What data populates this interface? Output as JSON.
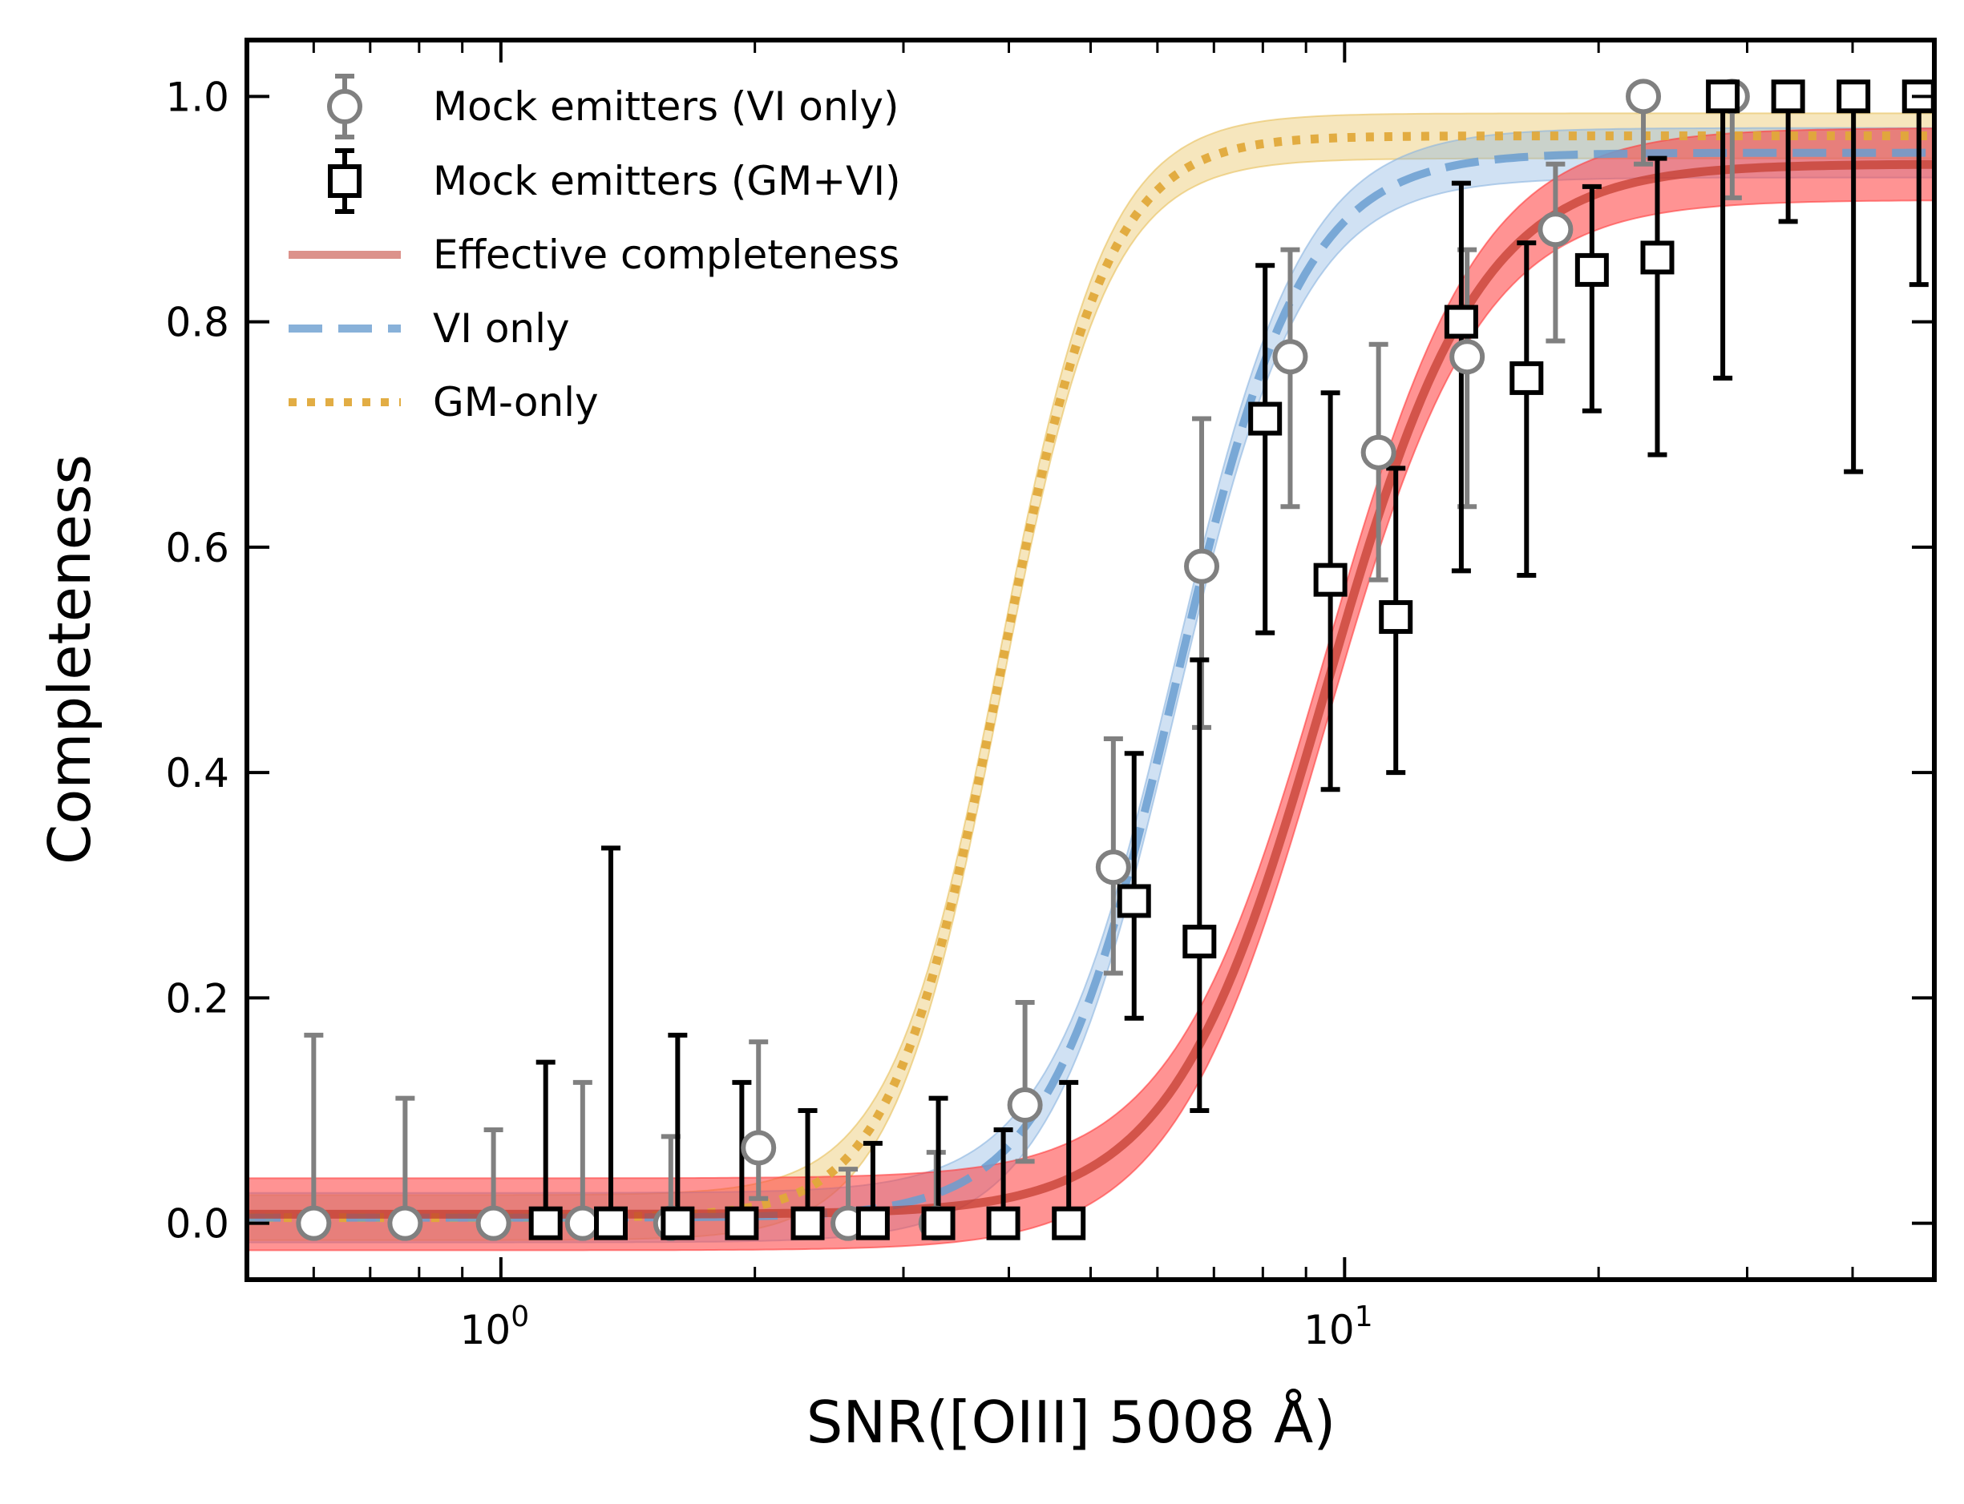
{
  "chart_data": {
    "type": "scatter",
    "xlabel": "SNR([OIII] 5008 Å)",
    "ylabel": "Completeness",
    "xscale": "log",
    "xlim": [
      0.5,
      50
    ],
    "ylim": [
      -0.05,
      1.05
    ],
    "x_ticks": [
      {
        "value": 1,
        "base": "10",
        "exp": "0"
      },
      {
        "value": 10,
        "base": "10",
        "exp": "1"
      }
    ],
    "y_ticks": [
      {
        "value": 0.0,
        "label": "0.0"
      },
      {
        "value": 0.2,
        "label": "0.2"
      },
      {
        "value": 0.4,
        "label": "0.4"
      },
      {
        "value": 0.6,
        "label": "0.6"
      },
      {
        "value": 0.8,
        "label": "0.8"
      },
      {
        "value": 1.0,
        "label": "1.0"
      }
    ],
    "grid": false,
    "legend_position": "top-left",
    "series": [
      {
        "name": "Mock emitters (VI only)",
        "kind": "errorbar",
        "marker": "circle",
        "color": "#808080",
        "points": [
          {
            "x": 0.6,
            "y": 0.0,
            "lo": 0.0,
            "hi": 0.167
          },
          {
            "x": 0.77,
            "y": 0.0,
            "lo": 0.0,
            "hi": 0.111
          },
          {
            "x": 0.98,
            "y": 0.0,
            "lo": 0.0,
            "hi": 0.083
          },
          {
            "x": 1.25,
            "y": 0.0,
            "lo": 0.0,
            "hi": 0.125
          },
          {
            "x": 1.59,
            "y": 0.0,
            "lo": 0.0,
            "hi": 0.077
          },
          {
            "x": 2.02,
            "y": 0.067,
            "lo": 0.022,
            "hi": 0.161
          },
          {
            "x": 2.58,
            "y": 0.0,
            "lo": 0.0,
            "hi": 0.048
          },
          {
            "x": 3.28,
            "y": 0.0,
            "lo": 0.0,
            "hi": 0.063
          },
          {
            "x": 4.18,
            "y": 0.105,
            "lo": 0.055,
            "hi": 0.196
          },
          {
            "x": 5.32,
            "y": 0.316,
            "lo": 0.222,
            "hi": 0.43
          },
          {
            "x": 6.77,
            "y": 0.583,
            "lo": 0.44,
            "hi": 0.714
          },
          {
            "x": 8.62,
            "y": 0.769,
            "lo": 0.636,
            "hi": 0.864
          },
          {
            "x": 10.97,
            "y": 0.684,
            "lo": 0.571,
            "hi": 0.78
          },
          {
            "x": 13.97,
            "y": 0.769,
            "lo": 0.636,
            "hi": 0.864
          },
          {
            "x": 17.78,
            "y": 0.882,
            "lo": 0.783,
            "hi": 0.94
          },
          {
            "x": 22.6,
            "y": 1.0,
            "lo": 0.94,
            "hi": 1.0
          },
          {
            "x": 28.8,
            "y": 1.0,
            "lo": 0.91,
            "hi": 1.0
          }
        ]
      },
      {
        "name": "Mock emitters (GM+VI)",
        "kind": "errorbar",
        "marker": "square",
        "color": "#000000",
        "points": [
          {
            "x": 1.13,
            "y": 0.0,
            "lo": 0.0,
            "hi": 0.143
          },
          {
            "x": 1.35,
            "y": 0.0,
            "lo": 0.0,
            "hi": 0.333
          },
          {
            "x": 1.62,
            "y": 0.0,
            "lo": 0.0,
            "hi": 0.167
          },
          {
            "x": 1.93,
            "y": 0.0,
            "lo": 0.0,
            "hi": 0.125
          },
          {
            "x": 2.31,
            "y": 0.0,
            "lo": 0.0,
            "hi": 0.1
          },
          {
            "x": 2.76,
            "y": 0.0,
            "lo": 0.0,
            "hi": 0.071
          },
          {
            "x": 3.3,
            "y": 0.0,
            "lo": 0.0,
            "hi": 0.111
          },
          {
            "x": 3.94,
            "y": 0.0,
            "lo": 0.0,
            "hi": 0.083
          },
          {
            "x": 4.71,
            "y": 0.0,
            "lo": 0.0,
            "hi": 0.125
          },
          {
            "x": 5.63,
            "y": 0.286,
            "lo": 0.182,
            "hi": 0.417
          },
          {
            "x": 6.73,
            "y": 0.25,
            "lo": 0.1,
            "hi": 0.5
          },
          {
            "x": 8.05,
            "y": 0.714,
            "lo": 0.524,
            "hi": 0.85
          },
          {
            "x": 9.62,
            "y": 0.571,
            "lo": 0.385,
            "hi": 0.737
          },
          {
            "x": 11.5,
            "y": 0.538,
            "lo": 0.4,
            "hi": 0.67
          },
          {
            "x": 13.75,
            "y": 0.8,
            "lo": 0.579,
            "hi": 0.923
          },
          {
            "x": 16.43,
            "y": 0.75,
            "lo": 0.575,
            "hi": 0.87
          },
          {
            "x": 19.64,
            "y": 0.846,
            "lo": 0.721,
            "hi": 0.92
          },
          {
            "x": 23.48,
            "y": 0.857,
            "lo": 0.682,
            "hi": 0.945
          },
          {
            "x": 28.07,
            "y": 1.0,
            "lo": 0.75,
            "hi": 1.0
          },
          {
            "x": 33.55,
            "y": 1.0,
            "lo": 0.889,
            "hi": 1.0
          },
          {
            "x": 40.1,
            "y": 1.0,
            "lo": 0.667,
            "hi": 1.0
          },
          {
            "x": 47.94,
            "y": 1.0,
            "lo": 0.833,
            "hi": 1.0
          }
        ]
      },
      {
        "name": "Effective completeness",
        "kind": "sigmoid",
        "style": "solid",
        "color": "#d62728",
        "line_color": "#c0392b",
        "band_color": "#ff3b3b",
        "params": {
          "floor": 0.008,
          "plateau": 0.94,
          "x50": 9.5,
          "width": 0.2
        },
        "band": 0.032
      },
      {
        "name": "VI only",
        "kind": "sigmoid",
        "style": "dashed",
        "color": "#5b9bd5",
        "line_color": "#6a9ed0",
        "band_color": "#8ab4e0",
        "params": {
          "floor": 0.005,
          "plateau": 0.95,
          "x50": 6.3,
          "width": 0.165
        },
        "band": 0.022
      },
      {
        "name": "GM-only",
        "kind": "sigmoid",
        "style": "dotted",
        "color": "#e0b040",
        "line_color": "#e0a93a",
        "band_color": "#e8c05a",
        "params": {
          "floor": 0.005,
          "plateau": 0.965,
          "x50": 3.9,
          "width": 0.14
        },
        "band": 0.02
      }
    ]
  }
}
